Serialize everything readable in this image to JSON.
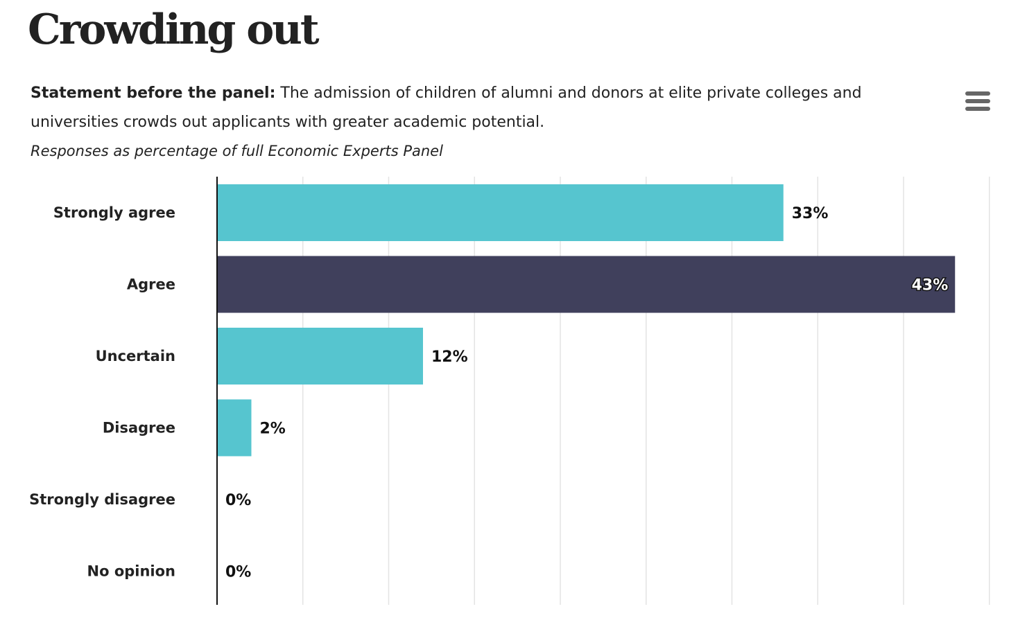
{
  "title": "Crowding out",
  "statement_lead": "Statement before the panel:",
  "statement_text": " The admission of children of alumni and donors at elite private colleges and universities crowds out applicants with greater academic potential.",
  "subtitle": "Responses as percentage of full Economic Experts Panel",
  "menu_icon": "hamburger-menu-icon",
  "chart_data": {
    "type": "bar",
    "orientation": "horizontal",
    "categories": [
      "Strongly agree",
      "Agree",
      "Uncertain",
      "Disagree",
      "Strongly disagree",
      "No opinion"
    ],
    "values": [
      33,
      43,
      12,
      2,
      0,
      0
    ],
    "value_labels": [
      "33%",
      "43%",
      "12%",
      "2%",
      "0%",
      "0%"
    ],
    "xlim": [
      0,
      45
    ],
    "grid": true,
    "colors": {
      "default": "#56c5cf",
      "highlight": "#40405c",
      "grid": "#e3e3e3",
      "axis": "#111111"
    },
    "highlight_index": 1
  }
}
